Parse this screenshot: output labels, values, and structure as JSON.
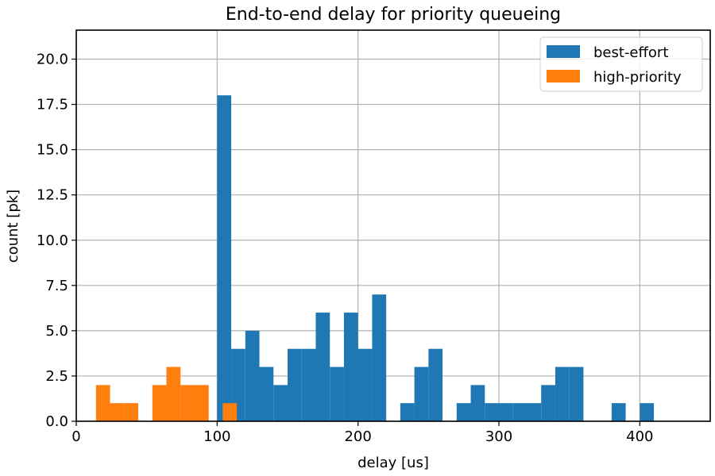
{
  "chart_data": {
    "type": "bar",
    "title": "End-to-end delay for priority queueing",
    "xlabel": "delay [us]",
    "ylabel": "count [pk]",
    "xlim": [
      0,
      450
    ],
    "ylim": [
      0,
      21.6
    ],
    "xticks": [
      0,
      100,
      200,
      300,
      400
    ],
    "yticks": [
      0.0,
      2.5,
      5.0,
      7.5,
      10.0,
      12.5,
      15.0,
      17.5,
      20.0
    ],
    "xtick_labels": [
      "0",
      "100",
      "200",
      "300",
      "400"
    ],
    "ytick_labels": [
      "0.0",
      "2.5",
      "5.0",
      "7.5",
      "10.0",
      "12.5",
      "15.0",
      "17.5",
      "20.0"
    ],
    "grid": true,
    "legend_position": "top-right",
    "series": [
      {
        "name": "best-effort",
        "color": "#1f77b4",
        "bins": [
          {
            "x0": 100,
            "x1": 110,
            "value": 18
          },
          {
            "x0": 110,
            "x1": 120,
            "value": 4
          },
          {
            "x0": 120,
            "x1": 130,
            "value": 5
          },
          {
            "x0": 130,
            "x1": 140,
            "value": 3
          },
          {
            "x0": 140,
            "x1": 150,
            "value": 2
          },
          {
            "x0": 150,
            "x1": 160,
            "value": 4
          },
          {
            "x0": 160,
            "x1": 170,
            "value": 4
          },
          {
            "x0": 170,
            "x1": 180,
            "value": 6
          },
          {
            "x0": 180,
            "x1": 190,
            "value": 3
          },
          {
            "x0": 190,
            "x1": 200,
            "value": 6
          },
          {
            "x0": 200,
            "x1": 210,
            "value": 4
          },
          {
            "x0": 210,
            "x1": 220,
            "value": 7
          },
          {
            "x0": 230,
            "x1": 240,
            "value": 1
          },
          {
            "x0": 240,
            "x1": 250,
            "value": 3
          },
          {
            "x0": 250,
            "x1": 260,
            "value": 4
          },
          {
            "x0": 270,
            "x1": 280,
            "value": 1
          },
          {
            "x0": 280,
            "x1": 290,
            "value": 2
          },
          {
            "x0": 290,
            "x1": 300,
            "value": 1
          },
          {
            "x0": 300,
            "x1": 310,
            "value": 1
          },
          {
            "x0": 310,
            "x1": 320,
            "value": 1
          },
          {
            "x0": 320,
            "x1": 330,
            "value": 1
          },
          {
            "x0": 330,
            "x1": 340,
            "value": 2
          },
          {
            "x0": 340,
            "x1": 350,
            "value": 3
          },
          {
            "x0": 350,
            "x1": 360,
            "value": 3
          },
          {
            "x0": 380,
            "x1": 390,
            "value": 1
          },
          {
            "x0": 400,
            "x1": 410,
            "value": 1
          }
        ]
      },
      {
        "name": "high-priority",
        "color": "#ff7f0e",
        "bins": [
          {
            "x0": 14,
            "x1": 24,
            "value": 2
          },
          {
            "x0": 24,
            "x1": 34,
            "value": 1
          },
          {
            "x0": 34,
            "x1": 44,
            "value": 1
          },
          {
            "x0": 54,
            "x1": 64,
            "value": 2
          },
          {
            "x0": 64,
            "x1": 74,
            "value": 3
          },
          {
            "x0": 74,
            "x1": 84,
            "value": 2
          },
          {
            "x0": 84,
            "x1": 94,
            "value": 2
          },
          {
            "x0": 104,
            "x1": 114,
            "value": 1
          }
        ]
      }
    ]
  }
}
